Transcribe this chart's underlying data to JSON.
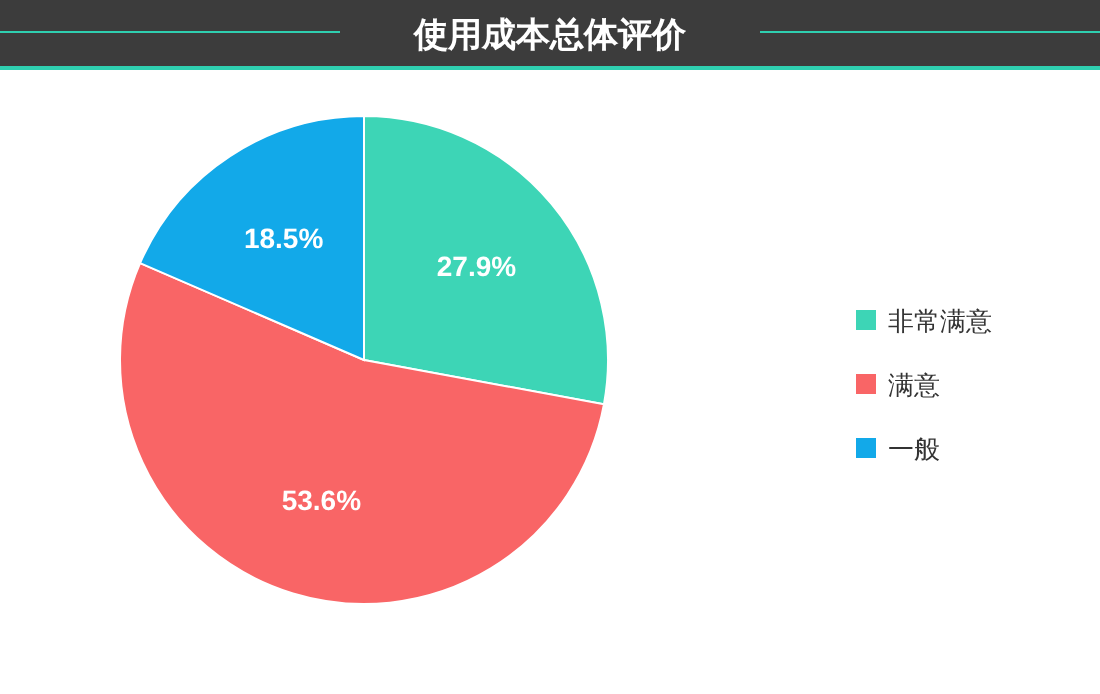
{
  "chart_data": {
    "type": "pie",
    "title": "使用成本总体评价",
    "categories": [
      "非常满意",
      "满意",
      "一般"
    ],
    "values": [
      27.9,
      53.6,
      18.5
    ],
    "colors": [
      "#3dd5b6",
      "#f96566",
      "#12a9e9"
    ],
    "value_labels": [
      "27.9%",
      "53.6%",
      "18.5%"
    ],
    "legend": "right"
  }
}
